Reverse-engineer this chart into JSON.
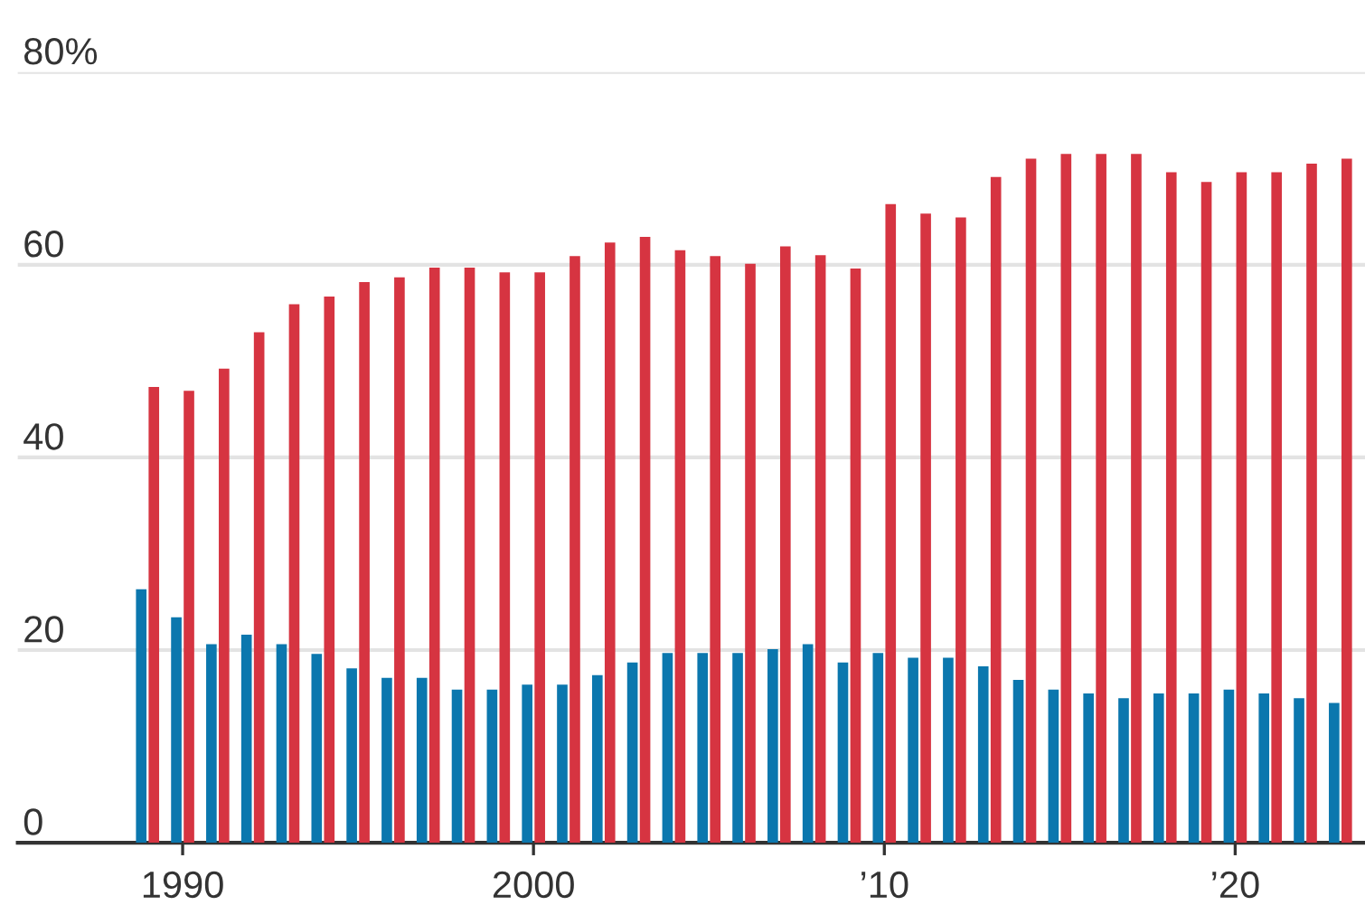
{
  "chart_data": {
    "type": "bar",
    "x": [
      1989,
      1990,
      1991,
      1992,
      1993,
      1994,
      1995,
      1996,
      1997,
      1998,
      1999,
      2000,
      2001,
      2002,
      2003,
      2004,
      2005,
      2006,
      2007,
      2008,
      2009,
      2010,
      2011,
      2012,
      2013,
      2014,
      2015,
      2016,
      2017,
      2018,
      2019,
      2020,
      2021,
      2022,
      2023
    ],
    "series": [
      {
        "color": "#0b77ae",
        "values": [
          26.3,
          23.4,
          20.6,
          21.6,
          20.6,
          19.6,
          18.1,
          17.1,
          17.1,
          15.9,
          15.9,
          16.4,
          16.4,
          17.4,
          18.7,
          19.7,
          19.7,
          19.7,
          20.1,
          20.6,
          18.7,
          19.7,
          19.2,
          19.2,
          18.3,
          16.9,
          15.9,
          15.5,
          15.0,
          15.5,
          15.5,
          15.9,
          15.5,
          15.0,
          14.5
        ]
      },
      {
        "color": "#d63441",
        "values": [
          47.3,
          46.9,
          49.2,
          53.0,
          55.9,
          56.7,
          58.2,
          58.7,
          59.7,
          59.7,
          59.2,
          59.2,
          60.9,
          62.3,
          62.9,
          61.5,
          60.9,
          60.1,
          61.9,
          61.0,
          59.6,
          66.3,
          65.3,
          64.9,
          69.1,
          71.0,
          71.5,
          71.5,
          71.5,
          69.6,
          68.6,
          69.6,
          69.6,
          70.5,
          71.0
        ]
      }
    ],
    "xlim": [
      1985.3,
      2023.7
    ],
    "xticks": [
      1990,
      2000,
      {
        "value": 2010,
        "label": "’10"
      },
      {
        "value": 2020,
        "label": "’20"
      }
    ],
    "ylim": [
      0,
      80
    ],
    "yticks": [
      0,
      20,
      40,
      60,
      {
        "value": 80,
        "label": "80%"
      }
    ],
    "grid": "y"
  }
}
